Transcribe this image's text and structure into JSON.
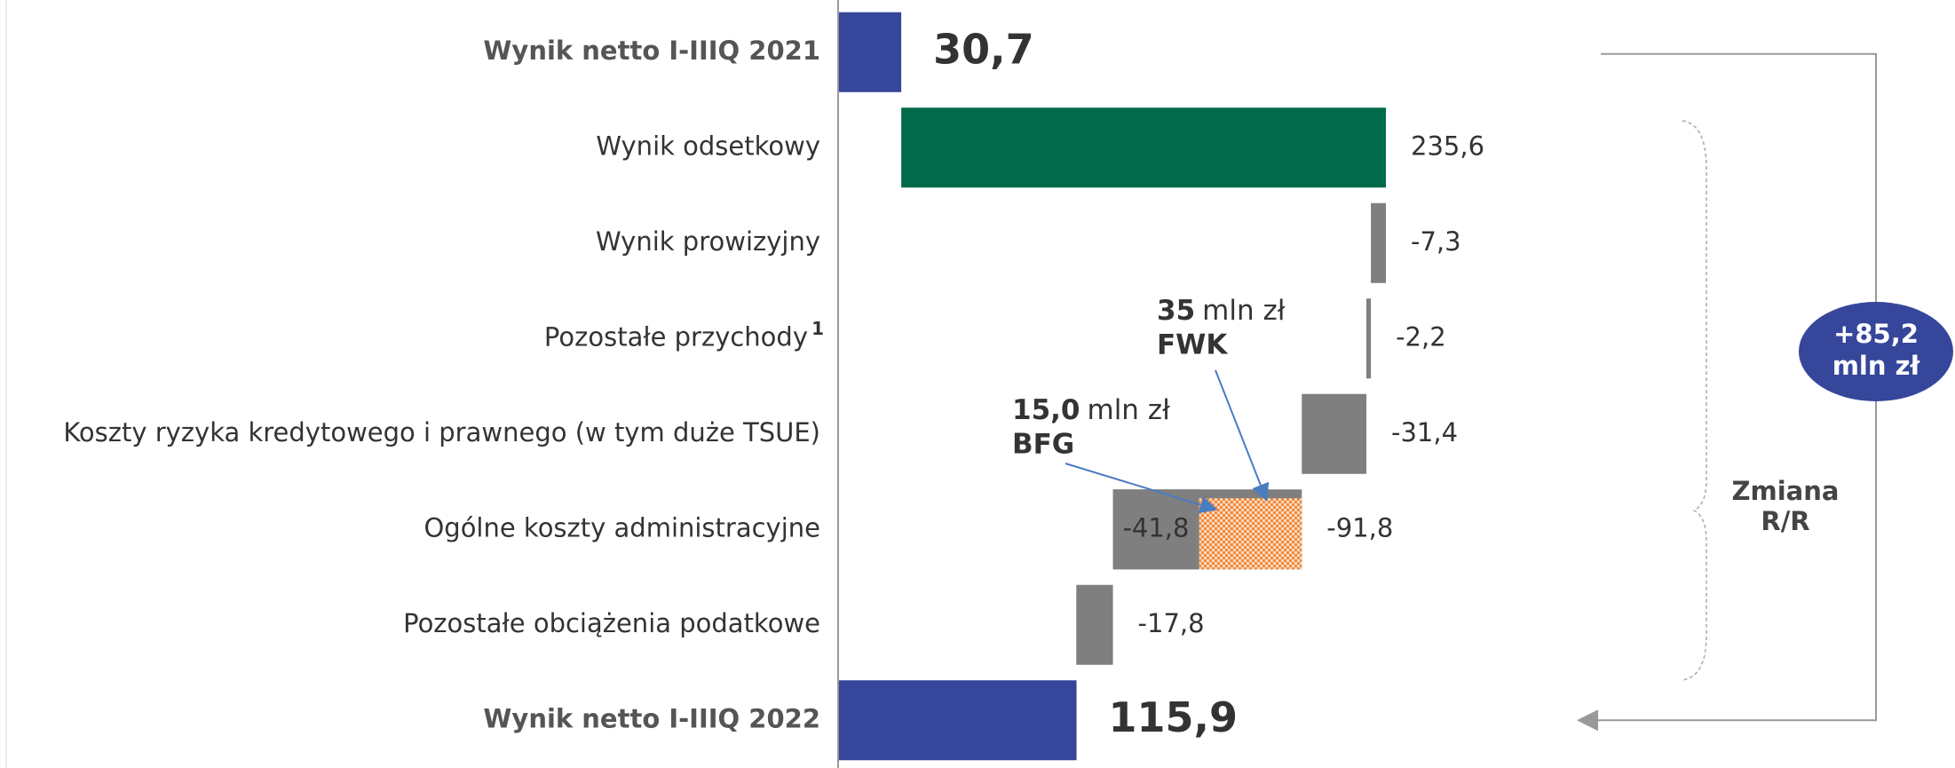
{
  "chart_data": {
    "type": "waterfall",
    "categories": [
      "Wynik netto I-IIIQ 2021",
      "Wynik odsetkowy",
      "Wynik prowizyjny",
      "Pozostałe przychody",
      "Koszty ryzyka kredytowego i prawnego (w tym duże TSUE)",
      "Ogólne koszty administracyjne",
      "Pozostałe obciążenia podatkowe",
      "Wynik netto I-IIIQ 2022"
    ],
    "footnote": {
      "category": 3,
      "mark": "1"
    },
    "measure": [
      "total",
      "relative",
      "relative",
      "relative",
      "relative",
      "relative",
      "relative",
      "total"
    ],
    "values": [
      30.7,
      235.6,
      -7.3,
      -2.2,
      -31.4,
      -91.8,
      -17.8,
      115.9
    ],
    "value_labels": [
      "30,7",
      "235,6",
      "-7,3",
      "-2,2",
      "-31,4",
      "-91,8",
      "-17,8",
      "115,9"
    ],
    "colors": [
      "#35469b",
      "#006a4a",
      "#7f7f7f",
      "#7f7f7f",
      "#7f7f7f",
      "#7f7f7f",
      "#7f7f7f",
      "#35469b"
    ],
    "xlim": [
      0,
      300
    ],
    "breakdown": {
      "category": 5,
      "parts": [
        {
          "name": "FWK",
          "value": 35,
          "unit": "mln zł",
          "color": "#f08a3c"
        },
        {
          "name": "BFG",
          "value": 15.0,
          "label": "15,0",
          "unit": "mln zł",
          "color": "#f08a3c"
        },
        {
          "value": -41.8,
          "label": "-41,8",
          "color": "#7f7f7f"
        }
      ]
    },
    "summary": {
      "value": 85.2,
      "label": "+85,2",
      "unit": "mln zł",
      "color": "#35469b",
      "bracket_label": [
        "Zmiana",
        "R/R"
      ]
    }
  }
}
